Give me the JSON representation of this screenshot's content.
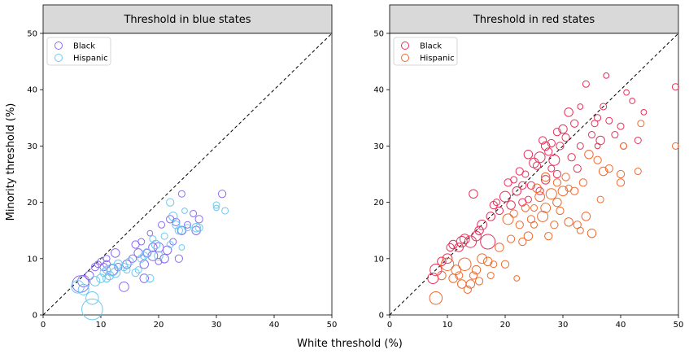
{
  "figure": {
    "xlabel": "White threshold (%)",
    "ylabel": "Minority threshold (%)"
  },
  "chart_data": [
    {
      "type": "scatter",
      "title": "Threshold in blue states",
      "xlim": [
        0,
        50
      ],
      "ylim": [
        0,
        50
      ],
      "xticks": [
        "0",
        "10",
        "20",
        "30",
        "40",
        "50"
      ],
      "yticks": [
        "0",
        "10",
        "20",
        "30",
        "40",
        "50"
      ],
      "reference_line": "y = x",
      "legend_placement": "upper-left",
      "series": [
        {
          "name": "Black",
          "color": "#8a6cf0",
          "points": [
            [
              6.5,
              5.5,
              14
            ],
            [
              7,
              6,
              9
            ],
            [
              8,
              7,
              6
            ],
            [
              9,
              8.5,
              5
            ],
            [
              9.5,
              9,
              4
            ],
            [
              10,
              9.5,
              4
            ],
            [
              10.5,
              8.5,
              5
            ],
            [
              11,
              10,
              4
            ],
            [
              11,
              9,
              5
            ],
            [
              12,
              8,
              8
            ],
            [
              12.5,
              11,
              6
            ],
            [
              13,
              8.5,
              5
            ],
            [
              14,
              5,
              7
            ],
            [
              14.5,
              9,
              6
            ],
            [
              15.5,
              10,
              5
            ],
            [
              16,
              12.5,
              5
            ],
            [
              16.5,
              11,
              6
            ],
            [
              17,
              13,
              4
            ],
            [
              17.5,
              9,
              6
            ],
            [
              18,
              11,
              5
            ],
            [
              18.5,
              14.5,
              3
            ],
            [
              19,
              12,
              6
            ],
            [
              19,
              10.5,
              7
            ],
            [
              20,
              12,
              7
            ],
            [
              20.5,
              16,
              4
            ],
            [
              21,
              10,
              6
            ],
            [
              21.5,
              11.5,
              6
            ],
            [
              22,
              17,
              5
            ],
            [
              22.5,
              13,
              4
            ],
            [
              23,
              16.5,
              5
            ],
            [
              23.5,
              10,
              5
            ],
            [
              24,
              21.5,
              4
            ],
            [
              24,
              15,
              6
            ],
            [
              25,
              16,
              4
            ],
            [
              26,
              18,
              4
            ],
            [
              26.5,
              15,
              6
            ],
            [
              27,
              17,
              5
            ],
            [
              31,
              21.5,
              5
            ],
            [
              17.5,
              6.5,
              6
            ],
            [
              20,
              9.5,
              4
            ]
          ]
        },
        {
          "name": "Hispanic",
          "color": "#6cc8f0",
          "points": [
            [
              6,
              5,
              10
            ],
            [
              7,
              4.5,
              8
            ],
            [
              8.5,
              1,
              18
            ],
            [
              8.5,
              3,
              10
            ],
            [
              9,
              6,
              7
            ],
            [
              10,
              6.5,
              6
            ],
            [
              10.5,
              7.5,
              5
            ],
            [
              11,
              8,
              5
            ],
            [
              11.5,
              7,
              6
            ],
            [
              12,
              8,
              9
            ],
            [
              12.5,
              7.5,
              7
            ],
            [
              13,
              9,
              6
            ],
            [
              14,
              8.5,
              5
            ],
            [
              15,
              9.5,
              5
            ],
            [
              16,
              7.5,
              5
            ],
            [
              16.5,
              8,
              4
            ],
            [
              17,
              10,
              5
            ],
            [
              18,
              11,
              6
            ],
            [
              18.5,
              6.5,
              5
            ],
            [
              19.5,
              12.5,
              6
            ],
            [
              20,
              10.5,
              6
            ],
            [
              21,
              14,
              4
            ],
            [
              22,
              20,
              5
            ],
            [
              22.5,
              17.5,
              6
            ],
            [
              23,
              16,
              5
            ],
            [
              23.5,
              15,
              5
            ],
            [
              24,
              12,
              3
            ],
            [
              24,
              15,
              5
            ],
            [
              25,
              15.5,
              4
            ],
            [
              26.5,
              15.5,
              6
            ],
            [
              27,
              15.5,
              5
            ],
            [
              30,
              19.5,
              4
            ],
            [
              30,
              19,
              3
            ],
            [
              31.5,
              18.5,
              4
            ],
            [
              17.5,
              10.5,
              5
            ],
            [
              19,
              13.5,
              4
            ],
            [
              22,
              12.5,
              4
            ],
            [
              24.5,
              18.5,
              3
            ],
            [
              11,
              6.5,
              5
            ],
            [
              14.5,
              8,
              4
            ]
          ]
        }
      ]
    },
    {
      "type": "scatter",
      "title": "Threshold in red states",
      "xlim": [
        0,
        50
      ],
      "ylim": [
        0,
        50
      ],
      "xticks": [
        "0",
        "10",
        "20",
        "30",
        "40",
        "50"
      ],
      "yticks": [
        "0",
        "10",
        "20",
        "30",
        "40",
        "50"
      ],
      "reference_line": "y = x",
      "legend_placement": "upper-left",
      "series": [
        {
          "name": "Black",
          "color": "#e8305a",
          "points": [
            [
              7.5,
              6.5,
              8
            ],
            [
              8,
              8,
              9
            ],
            [
              9,
              9.5,
              6
            ],
            [
              10,
              10,
              7
            ],
            [
              10.5,
              12,
              5
            ],
            [
              11,
              12.5,
              6
            ],
            [
              12,
              12,
              6
            ],
            [
              12.5,
              13,
              8
            ],
            [
              13,
              13.5,
              7
            ],
            [
              14,
              13,
              9
            ],
            [
              14.5,
              21.5,
              6
            ],
            [
              15,
              14,
              7
            ],
            [
              15.5,
              15,
              6
            ],
            [
              16,
              16,
              7
            ],
            [
              17,
              13,
              12
            ],
            [
              17.5,
              17.5,
              6
            ],
            [
              18,
              19.5,
              5
            ],
            [
              18.5,
              20,
              4
            ],
            [
              19,
              18.5,
              5
            ],
            [
              20,
              21,
              8
            ],
            [
              20.5,
              23.5,
              5
            ],
            [
              21,
              19.5,
              6
            ],
            [
              21.5,
              24,
              4
            ],
            [
              22,
              22,
              6
            ],
            [
              22.5,
              25.5,
              5
            ],
            [
              23,
              20,
              5
            ],
            [
              23.5,
              25,
              4
            ],
            [
              24,
              28.5,
              6
            ],
            [
              24.5,
              23,
              5
            ],
            [
              25,
              27,
              7
            ],
            [
              25.5,
              26.5,
              5
            ],
            [
              26,
              28,
              8
            ],
            [
              26.5,
              31,
              5
            ],
            [
              27,
              30,
              6
            ],
            [
              27.5,
              29,
              5
            ],
            [
              28,
              30.5,
              5
            ],
            [
              28.5,
              27.5,
              8
            ],
            [
              29,
              32.5,
              5
            ],
            [
              29.5,
              30,
              5
            ],
            [
              30,
              33,
              6
            ],
            [
              30.5,
              31.5,
              5
            ],
            [
              31,
              36,
              6
            ],
            [
              31.5,
              28,
              5
            ],
            [
              32,
              34,
              5
            ],
            [
              32.5,
              26,
              5
            ],
            [
              33,
              30,
              4
            ],
            [
              34,
              41,
              4
            ],
            [
              35,
              32,
              4
            ],
            [
              35.5,
              34,
              4
            ],
            [
              36,
              35,
              4
            ],
            [
              36.5,
              31,
              6
            ],
            [
              37,
              37,
              4
            ],
            [
              37.5,
              42.5,
              3
            ],
            [
              38,
              34.5,
              4
            ],
            [
              39,
              32,
              4
            ],
            [
              40,
              33.5,
              4
            ],
            [
              40.5,
              30,
              4
            ],
            [
              41,
              39.5,
              3
            ],
            [
              42,
              38,
              3
            ],
            [
              43,
              31,
              4
            ],
            [
              44,
              36,
              3
            ],
            [
              49.5,
              40.5,
              4
            ],
            [
              23,
              23,
              5
            ],
            [
              27,
              24,
              6
            ],
            [
              29,
              25,
              5
            ],
            [
              24,
              20.5,
              4
            ],
            [
              26,
              22,
              5
            ],
            [
              28,
              26,
              4
            ],
            [
              33,
              37,
              3
            ],
            [
              36,
              30,
              3
            ]
          ]
        },
        {
          "name": "Hispanic",
          "color": "#f06a2e",
          "points": [
            [
              8,
              3,
              10
            ],
            [
              9,
              7,
              6
            ],
            [
              10,
              9,
              10
            ],
            [
              11,
              6.5,
              6
            ],
            [
              11.5,
              8,
              7
            ],
            [
              12,
              7,
              5
            ],
            [
              12.5,
              5.5,
              6
            ],
            [
              13,
              9,
              10
            ],
            [
              13.5,
              4.5,
              5
            ],
            [
              14,
              5.5,
              6
            ],
            [
              14.5,
              7,
              5
            ],
            [
              15,
              8,
              6
            ],
            [
              15.5,
              6,
              5
            ],
            [
              16,
              10,
              7
            ],
            [
              17,
              9.5,
              6
            ],
            [
              17.5,
              7,
              4
            ],
            [
              18,
              9,
              4
            ],
            [
              19,
              12,
              6
            ],
            [
              20,
              9,
              5
            ],
            [
              20.5,
              17,
              8
            ],
            [
              21,
              13.5,
              5
            ],
            [
              21.5,
              18,
              5
            ],
            [
              22,
              6.5,
              3
            ],
            [
              22.5,
              16,
              5
            ],
            [
              23,
              13,
              5
            ],
            [
              23.5,
              19,
              5
            ],
            [
              24,
              14,
              6
            ],
            [
              24.5,
              17,
              5
            ],
            [
              25,
              16,
              4
            ],
            [
              25.5,
              22.5,
              6
            ],
            [
              26,
              21,
              7
            ],
            [
              26.5,
              17.5,
              8
            ],
            [
              27,
              19,
              7
            ],
            [
              27.5,
              14,
              5
            ],
            [
              28,
              21.5,
              8
            ],
            [
              28.5,
              16,
              5
            ],
            [
              29,
              20,
              6
            ],
            [
              29.5,
              18.5,
              5
            ],
            [
              30,
              22,
              7
            ],
            [
              30.5,
              24.5,
              5
            ],
            [
              31,
              16.5,
              6
            ],
            [
              32,
              22,
              5
            ],
            [
              32.5,
              16,
              5
            ],
            [
              33,
              15,
              4
            ],
            [
              33.5,
              23.5,
              5
            ],
            [
              34,
              17.5,
              6
            ],
            [
              34.5,
              28.5,
              6
            ],
            [
              35,
              14.5,
              6
            ],
            [
              36,
              27.5,
              5
            ],
            [
              36.5,
              20.5,
              4
            ],
            [
              37,
              25.5,
              6
            ],
            [
              38,
              26,
              5
            ],
            [
              40,
              25,
              5
            ],
            [
              40,
              23.5,
              5
            ],
            [
              40.5,
              30,
              4
            ],
            [
              43,
              25.5,
              4
            ],
            [
              43.5,
              34,
              4
            ],
            [
              49.5,
              30,
              4
            ],
            [
              27,
              24.5,
              6
            ],
            [
              29,
              23.5,
              5
            ],
            [
              31,
              22.5,
              4
            ],
            [
              25,
              19,
              4
            ]
          ]
        }
      ]
    }
  ]
}
